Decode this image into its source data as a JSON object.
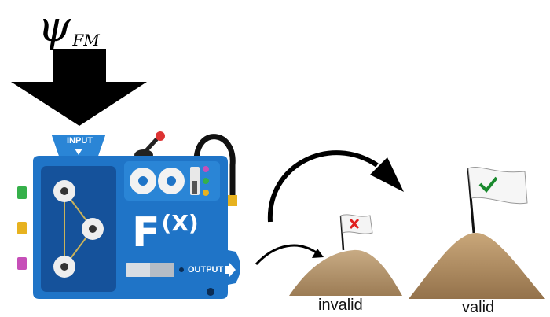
{
  "input_label": {
    "symbol": "ψ",
    "subscript": "FM"
  },
  "machine": {
    "input_text": "INPUT",
    "output_text": "OUTPUT",
    "function_f": "F",
    "function_x": "(X)",
    "body_color": "#1f74c7",
    "panel_color": "#15529b"
  },
  "outcomes": {
    "invalid": {
      "label": "invalid",
      "flag_mark": "x-mark",
      "mark_color": "#e02020"
    },
    "valid": {
      "label": "valid",
      "flag_mark": "check-mark",
      "mark_color": "#1a8a2e"
    }
  }
}
